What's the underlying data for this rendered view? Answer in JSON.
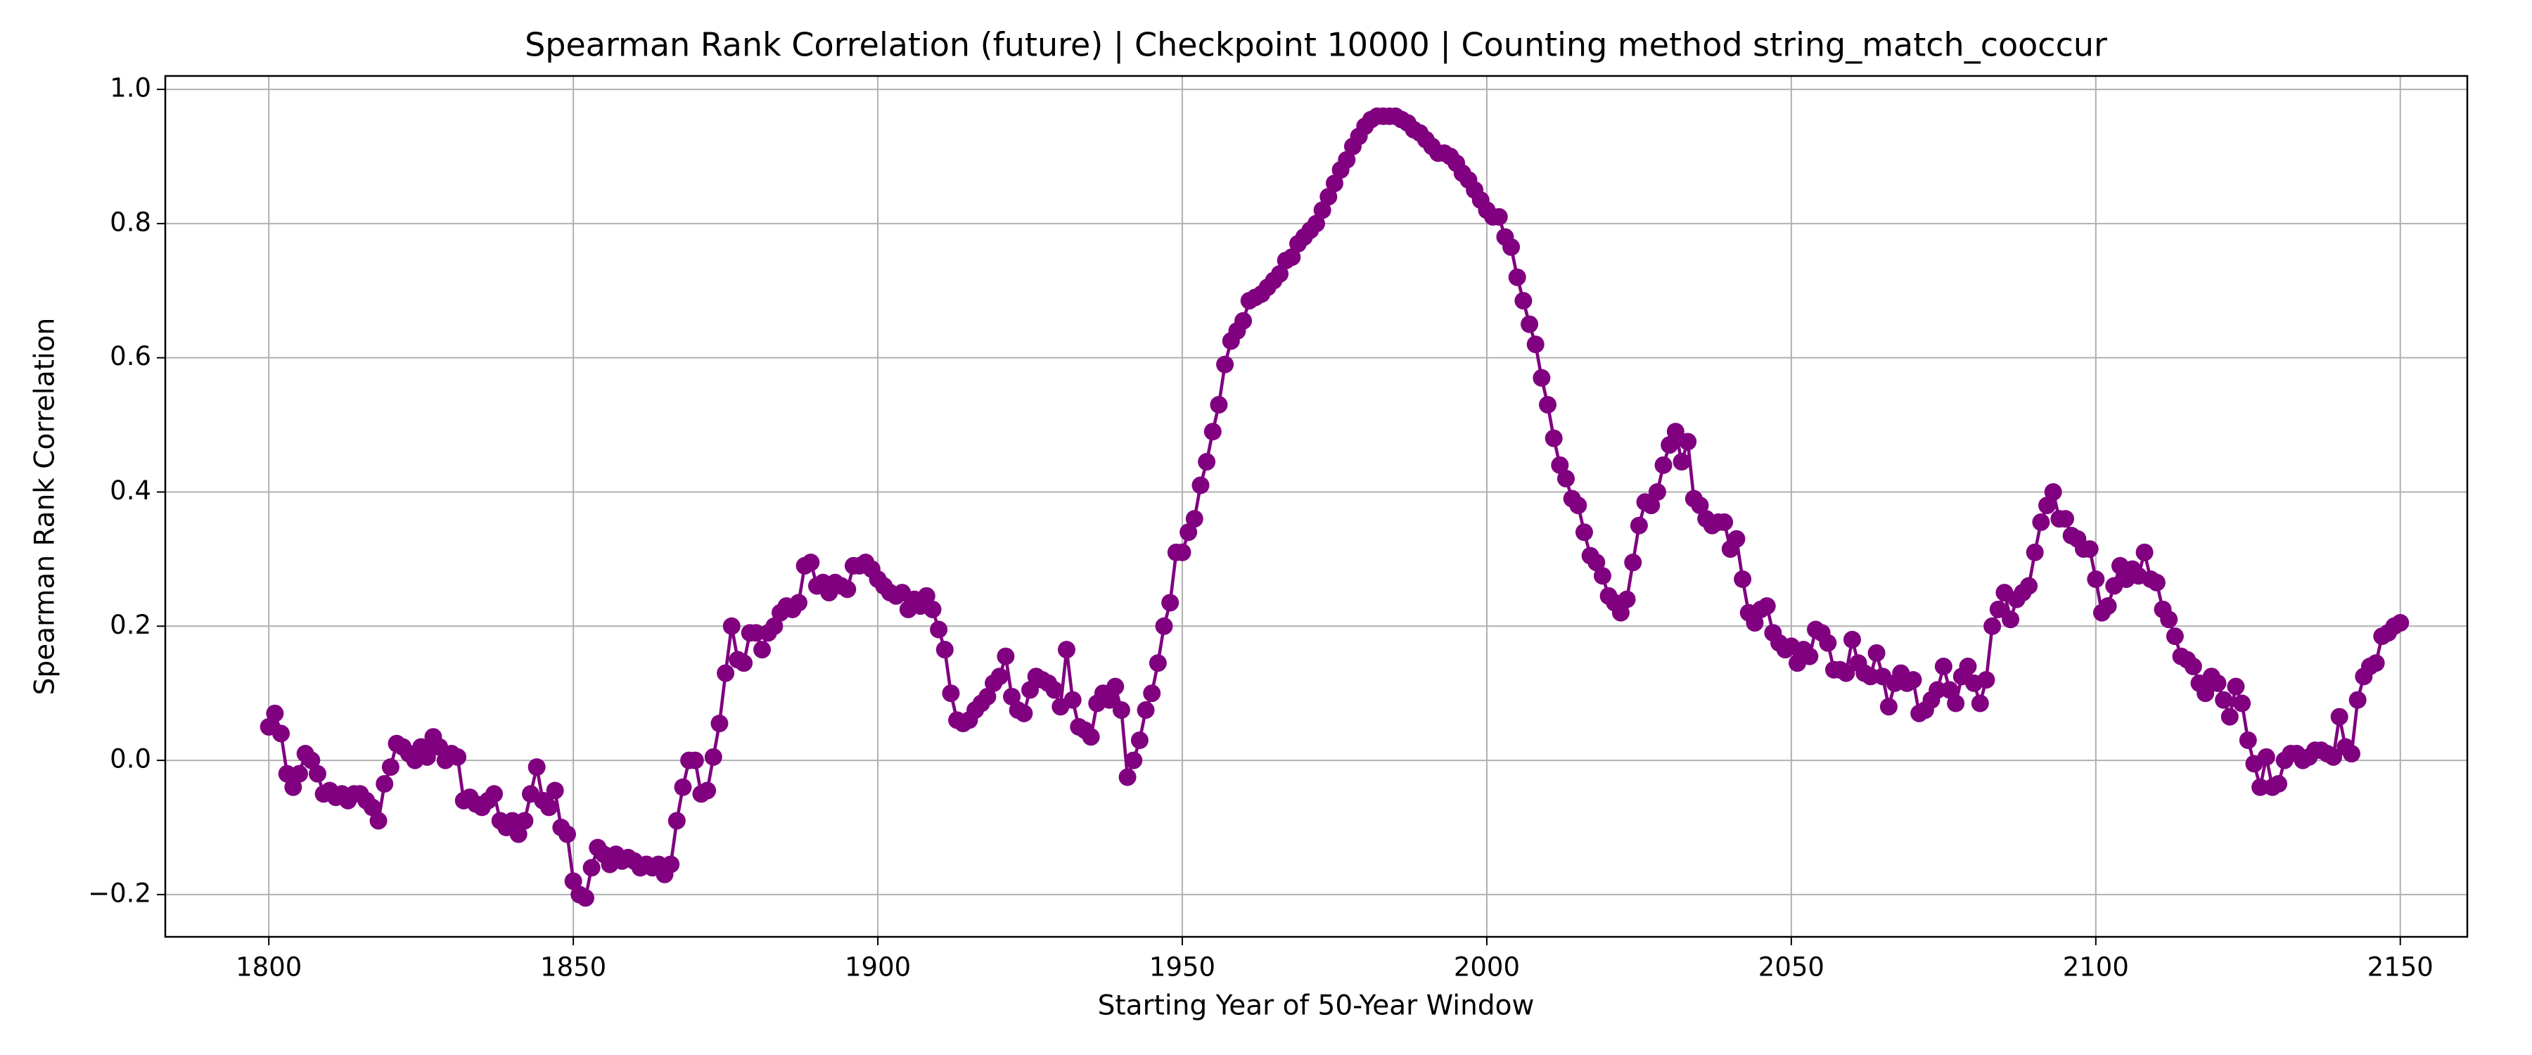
{
  "chart_data": {
    "type": "line",
    "title": "Spearman Rank Correlation (future) | Checkpoint 10000 | Counting method string_match_cooccur",
    "xlabel": "Starting Year of 50-Year Window",
    "ylabel": "Spearman Rank Correlation",
    "color": "#800080",
    "grid": true,
    "xlim": [
      1783,
      2161
    ],
    "ylim": [
      -0.263,
      1.02
    ],
    "xticks": [
      1800,
      1850,
      1900,
      1950,
      2000,
      2050,
      2100,
      2150
    ],
    "yticks": [
      {
        "value": -0.2,
        "label": "−0.2"
      },
      {
        "value": 0.0,
        "label": "0.0"
      },
      {
        "value": 0.2,
        "label": "0.2"
      },
      {
        "value": 0.4,
        "label": "0.4"
      },
      {
        "value": 0.6,
        "label": "0.6"
      },
      {
        "value": 0.8,
        "label": "0.8"
      },
      {
        "value": 1.0,
        "label": "1.0"
      }
    ],
    "x": [
      1800,
      1801,
      1802,
      1803,
      1804,
      1805,
      1806,
      1807,
      1808,
      1809,
      1810,
      1811,
      1812,
      1813,
      1814,
      1815,
      1816,
      1817,
      1818,
      1819,
      1820,
      1821,
      1822,
      1823,
      1824,
      1825,
      1826,
      1827,
      1828,
      1829,
      1830,
      1831,
      1832,
      1833,
      1834,
      1835,
      1836,
      1837,
      1838,
      1839,
      1840,
      1841,
      1842,
      1843,
      1844,
      1845,
      1846,
      1847,
      1848,
      1849,
      1850,
      1851,
      1852,
      1853,
      1854,
      1855,
      1856,
      1857,
      1858,
      1859,
      1860,
      1861,
      1862,
      1863,
      1864,
      1865,
      1866,
      1867,
      1868,
      1869,
      1870,
      1871,
      1872,
      1873,
      1874,
      1875,
      1876,
      1877,
      1878,
      1879,
      1880,
      1881,
      1882,
      1883,
      1884,
      1885,
      1886,
      1887,
      1888,
      1889,
      1890,
      1891,
      1892,
      1893,
      1894,
      1895,
      1896,
      1897,
      1898,
      1899,
      1900,
      1901,
      1902,
      1903,
      1904,
      1905,
      1906,
      1907,
      1908,
      1909,
      1910,
      1911,
      1912,
      1913,
      1914,
      1915,
      1916,
      1917,
      1918,
      1919,
      1920,
      1921,
      1922,
      1923,
      1924,
      1925,
      1926,
      1927,
      1928,
      1929,
      1930,
      1931,
      1932,
      1933,
      1934,
      1935,
      1936,
      1937,
      1938,
      1939,
      1940,
      1941,
      1942,
      1943,
      1944,
      1945,
      1946,
      1947,
      1948,
      1949,
      1950,
      1951,
      1952,
      1953,
      1954,
      1955,
      1956,
      1957,
      1958,
      1959,
      1960,
      1961,
      1962,
      1963,
      1964,
      1965,
      1966,
      1967,
      1968,
      1969,
      1970,
      1971,
      1972,
      1973,
      1974,
      1975,
      1976,
      1977,
      1978,
      1979,
      1980,
      1981,
      1982,
      1983,
      1984,
      1985,
      1986,
      1987,
      1988,
      1989,
      1990,
      1991,
      1992,
      1993,
      1994,
      1995,
      1996,
      1997,
      1998,
      1999,
      2000,
      2001,
      2002,
      2003,
      2004,
      2005,
      2006,
      2007,
      2008,
      2009,
      2010,
      2011,
      2012,
      2013,
      2014,
      2015,
      2016,
      2017,
      2018,
      2019,
      2020,
      2021,
      2022,
      2023,
      2024,
      2025,
      2026,
      2027,
      2028,
      2029,
      2030,
      2031,
      2032,
      2033,
      2034,
      2035,
      2036,
      2037,
      2038,
      2039,
      2040,
      2041,
      2042,
      2043,
      2044,
      2045,
      2046,
      2047,
      2048,
      2049,
      2050,
      2051,
      2052,
      2053,
      2054,
      2055,
      2056,
      2057,
      2058,
      2059,
      2060,
      2061,
      2062,
      2063,
      2064,
      2065,
      2066,
      2067,
      2068,
      2069,
      2070,
      2071,
      2072,
      2073,
      2074,
      2075,
      2076,
      2077,
      2078,
      2079,
      2080,
      2081,
      2082,
      2083,
      2084,
      2085,
      2086,
      2087,
      2088,
      2089,
      2090,
      2091,
      2092,
      2093,
      2094,
      2095,
      2096,
      2097,
      2098,
      2099,
      2100,
      2101,
      2102,
      2103,
      2104,
      2105,
      2106,
      2107,
      2108,
      2109,
      2110,
      2111,
      2112,
      2113,
      2114,
      2115,
      2116,
      2117,
      2118,
      2119,
      2120,
      2121,
      2122,
      2123,
      2124,
      2125,
      2126,
      2127,
      2128,
      2129,
      2130,
      2131,
      2132,
      2133,
      2134,
      2135,
      2136,
      2137,
      2138,
      2139,
      2140,
      2141,
      2142,
      2143,
      2144,
      2145,
      2146,
      2147,
      2148,
      2149,
      2150
    ],
    "values": [
      0.05,
      0.07,
      0.04,
      -0.02,
      -0.04,
      -0.02,
      0.01,
      0.0,
      -0.02,
      -0.05,
      -0.045,
      -0.055,
      -0.05,
      -0.06,
      -0.05,
      -0.05,
      -0.06,
      -0.07,
      -0.09,
      -0.035,
      -0.01,
      0.025,
      0.02,
      0.01,
      0.0,
      0.02,
      0.005,
      0.035,
      0.02,
      0.0,
      0.01,
      0.005,
      -0.06,
      -0.055,
      -0.065,
      -0.07,
      -0.06,
      -0.05,
      -0.09,
      -0.1,
      -0.09,
      -0.11,
      -0.09,
      -0.05,
      -0.01,
      -0.06,
      -0.07,
      -0.045,
      -0.1,
      -0.11,
      -0.18,
      -0.2,
      -0.205,
      -0.16,
      -0.13,
      -0.14,
      -0.155,
      -0.14,
      -0.15,
      -0.145,
      -0.15,
      -0.16,
      -0.155,
      -0.16,
      -0.155,
      -0.17,
      -0.155,
      -0.09,
      -0.04,
      0.0,
      0.0,
      -0.05,
      -0.045,
      0.005,
      0.055,
      0.13,
      0.2,
      0.15,
      0.145,
      0.19,
      0.19,
      0.165,
      0.19,
      0.2,
      0.22,
      0.23,
      0.225,
      0.235,
      0.29,
      0.295,
      0.26,
      0.265,
      0.25,
      0.265,
      0.26,
      0.255,
      0.29,
      0.29,
      0.295,
      0.285,
      0.27,
      0.26,
      0.25,
      0.245,
      0.25,
      0.225,
      0.24,
      0.23,
      0.245,
      0.225,
      0.195,
      0.165,
      0.1,
      0.06,
      0.055,
      0.06,
      0.075,
      0.085,
      0.095,
      0.115,
      0.125,
      0.155,
      0.095,
      0.075,
      0.07,
      0.105,
      0.125,
      0.12,
      0.115,
      0.105,
      0.08,
      0.165,
      0.09,
      0.05,
      0.045,
      0.035,
      0.085,
      0.1,
      0.09,
      0.11,
      0.075,
      -0.025,
      0.0,
      0.03,
      0.075,
      0.1,
      0.145,
      0.2,
      0.235,
      0.31,
      0.31,
      0.34,
      0.36,
      0.41,
      0.445,
      0.49,
      0.53,
      0.59,
      0.625,
      0.64,
      0.655,
      0.685,
      0.69,
      0.695,
      0.705,
      0.715,
      0.725,
      0.745,
      0.75,
      0.77,
      0.78,
      0.79,
      0.8,
      0.82,
      0.84,
      0.86,
      0.88,
      0.895,
      0.915,
      0.93,
      0.945,
      0.955,
      0.96,
      0.96,
      0.96,
      0.96,
      0.955,
      0.95,
      0.94,
      0.935,
      0.925,
      0.915,
      0.905,
      0.905,
      0.9,
      0.89,
      0.875,
      0.865,
      0.85,
      0.835,
      0.82,
      0.81,
      0.81,
      0.78,
      0.765,
      0.72,
      0.685,
      0.65,
      0.62,
      0.57,
      0.53,
      0.48,
      0.44,
      0.42,
      0.39,
      0.38,
      0.34,
      0.305,
      0.295,
      0.275,
      0.245,
      0.235,
      0.22,
      0.24,
      0.295,
      0.35,
      0.385,
      0.38,
      0.4,
      0.44,
      0.47,
      0.49,
      0.445,
      0.475,
      0.39,
      0.38,
      0.36,
      0.35,
      0.355,
      0.355,
      0.315,
      0.33,
      0.27,
      0.22,
      0.205,
      0.225,
      0.23,
      0.19,
      0.175,
      0.165,
      0.17,
      0.145,
      0.165,
      0.155,
      0.195,
      0.19,
      0.175,
      0.135,
      0.135,
      0.13,
      0.18,
      0.145,
      0.13,
      0.125,
      0.16,
      0.125,
      0.08,
      0.115,
      0.13,
      0.115,
      0.12,
      0.07,
      0.075,
      0.09,
      0.105,
      0.14,
      0.105,
      0.085,
      0.125,
      0.14,
      0.115,
      0.085,
      0.12,
      0.2,
      0.225,
      0.25,
      0.21,
      0.24,
      0.25,
      0.26,
      0.31,
      0.355,
      0.38,
      0.4,
      0.36,
      0.36,
      0.335,
      0.33,
      0.315,
      0.315,
      0.27,
      0.22,
      0.23,
      0.26,
      0.29,
      0.27,
      0.285,
      0.275,
      0.31,
      0.27,
      0.265,
      0.225,
      0.21,
      0.185,
      0.155,
      0.15,
      0.14,
      0.115,
      0.1,
      0.125,
      0.115,
      0.09,
      0.065,
      0.11,
      0.085,
      0.03,
      -0.005,
      -0.04,
      0.005,
      -0.04,
      -0.035,
      0.0,
      0.01,
      0.01,
      0.0,
      0.005,
      0.015,
      0.015,
      0.01,
      0.005,
      0.065,
      0.02,
      0.01,
      0.09,
      0.125,
      0.14,
      0.145,
      0.185,
      0.19,
      0.2,
      0.205
    ]
  }
}
